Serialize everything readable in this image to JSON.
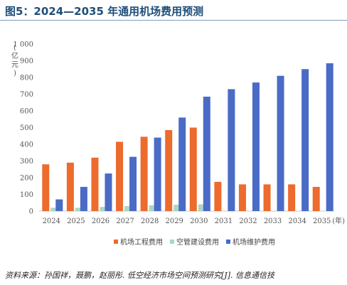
{
  "header": {
    "title": "图5：2024—2035 年通用机场费用预测"
  },
  "unit_label": [
    "(",
    "亿",
    "元",
    ")"
  ],
  "source": "资料来源：孙国祥，聂鹏，赵丽彤. 低空经济市场空间预测研究[J]. 信息通信技",
  "chart_data": {
    "type": "bar",
    "title": "",
    "xlabel": "(年)",
    "ylabel": "(亿元)",
    "ylim": [
      0,
      1000
    ],
    "yticks": [
      "0",
      "100",
      "200",
      "300",
      "400",
      "500",
      "600",
      "700",
      "800",
      "900",
      "1 000"
    ],
    "grid": false,
    "legend_position": "bottom",
    "categories": [
      "2024",
      "2025",
      "2026",
      "2027",
      "2028",
      "2029",
      "2030",
      "2031",
      "2032",
      "2033",
      "2034",
      "2035"
    ],
    "series": [
      {
        "name": "机场工程费用",
        "color": "#ec6b2d",
        "values": [
          280,
          290,
          320,
          415,
          445,
          485,
          500,
          175,
          160,
          160,
          160,
          145
        ]
      },
      {
        "name": "空管建设费用",
        "color": "#a8d8c0",
        "values": [
          20,
          20,
          25,
          30,
          35,
          38,
          40,
          0,
          0,
          0,
          0,
          0
        ]
      },
      {
        "name": "机场维护费用",
        "color": "#4a6bc6",
        "values": [
          70,
          145,
          225,
          325,
          440,
          560,
          685,
          730,
          770,
          810,
          850,
          885
        ]
      }
    ]
  }
}
